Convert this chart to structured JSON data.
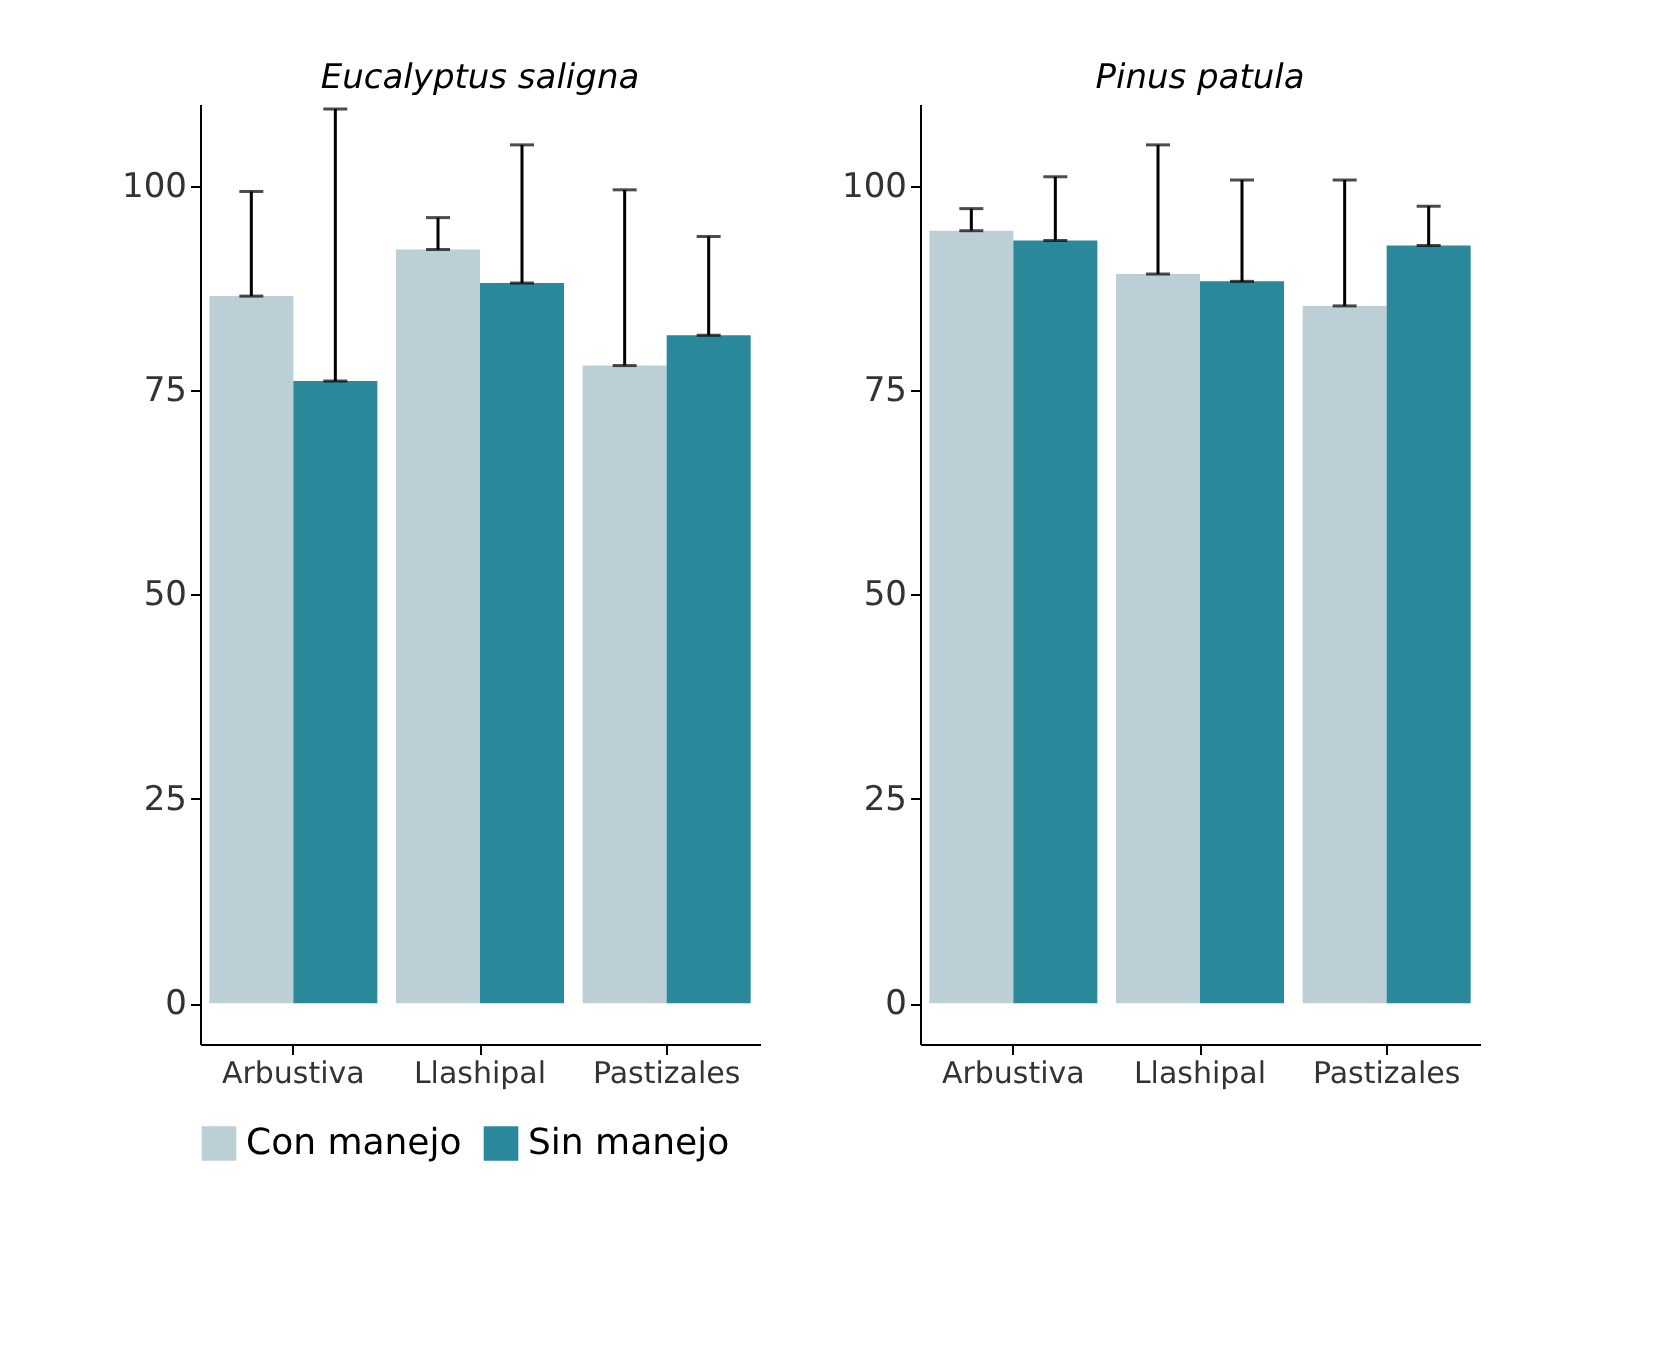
{
  "chart_data": [
    {
      "type": "bar",
      "title": "Eucalyptus saligna",
      "categories": [
        "Arbustiva",
        "Llashipal",
        "Pastizales"
      ],
      "ylim": [
        -5,
        110
      ],
      "yticks": [
        0,
        25,
        50,
        75,
        100
      ],
      "grid": false,
      "legend": "bottom",
      "series": [
        {
          "name": "Con manejo",
          "color": "#bccfd6",
          "values": [
            86.5,
            92.2,
            78
          ],
          "errors": [
            [
              86.5,
              99.3
            ],
            [
              92.2,
              96.1
            ],
            [
              78,
              99.5
            ]
          ]
        },
        {
          "name": "Sin manejo",
          "color": "#29899a",
          "values": [
            76.1,
            88.1,
            81.7
          ],
          "errors": [
            [
              76.1,
              109.4
            ],
            [
              88.1,
              105
            ],
            [
              81.7,
              93.8
            ]
          ]
        }
      ]
    },
    {
      "type": "bar",
      "title": "Pinus patula",
      "categories": [
        "Arbustiva",
        "Llashipal",
        "Pastizales"
      ],
      "ylim": [
        -5,
        110
      ],
      "yticks": [
        0,
        25,
        50,
        75,
        100
      ],
      "grid": false,
      "series": [
        {
          "name": "Con manejo",
          "color": "#bccfd6",
          "values": [
            94.5,
            89.2,
            85.3
          ],
          "errors": [
            [
              94.5,
              97.2
            ],
            [
              89.2,
              105
            ],
            [
              85.3,
              100.7
            ]
          ]
        },
        {
          "name": "Sin manejo",
          "color": "#29899a",
          "values": [
            93.3,
            88.3,
            92.7
          ],
          "errors": [
            [
              93.3,
              101.1
            ],
            [
              88.3,
              100.7
            ],
            [
              92.7,
              97.5
            ]
          ]
        }
      ]
    }
  ]
}
